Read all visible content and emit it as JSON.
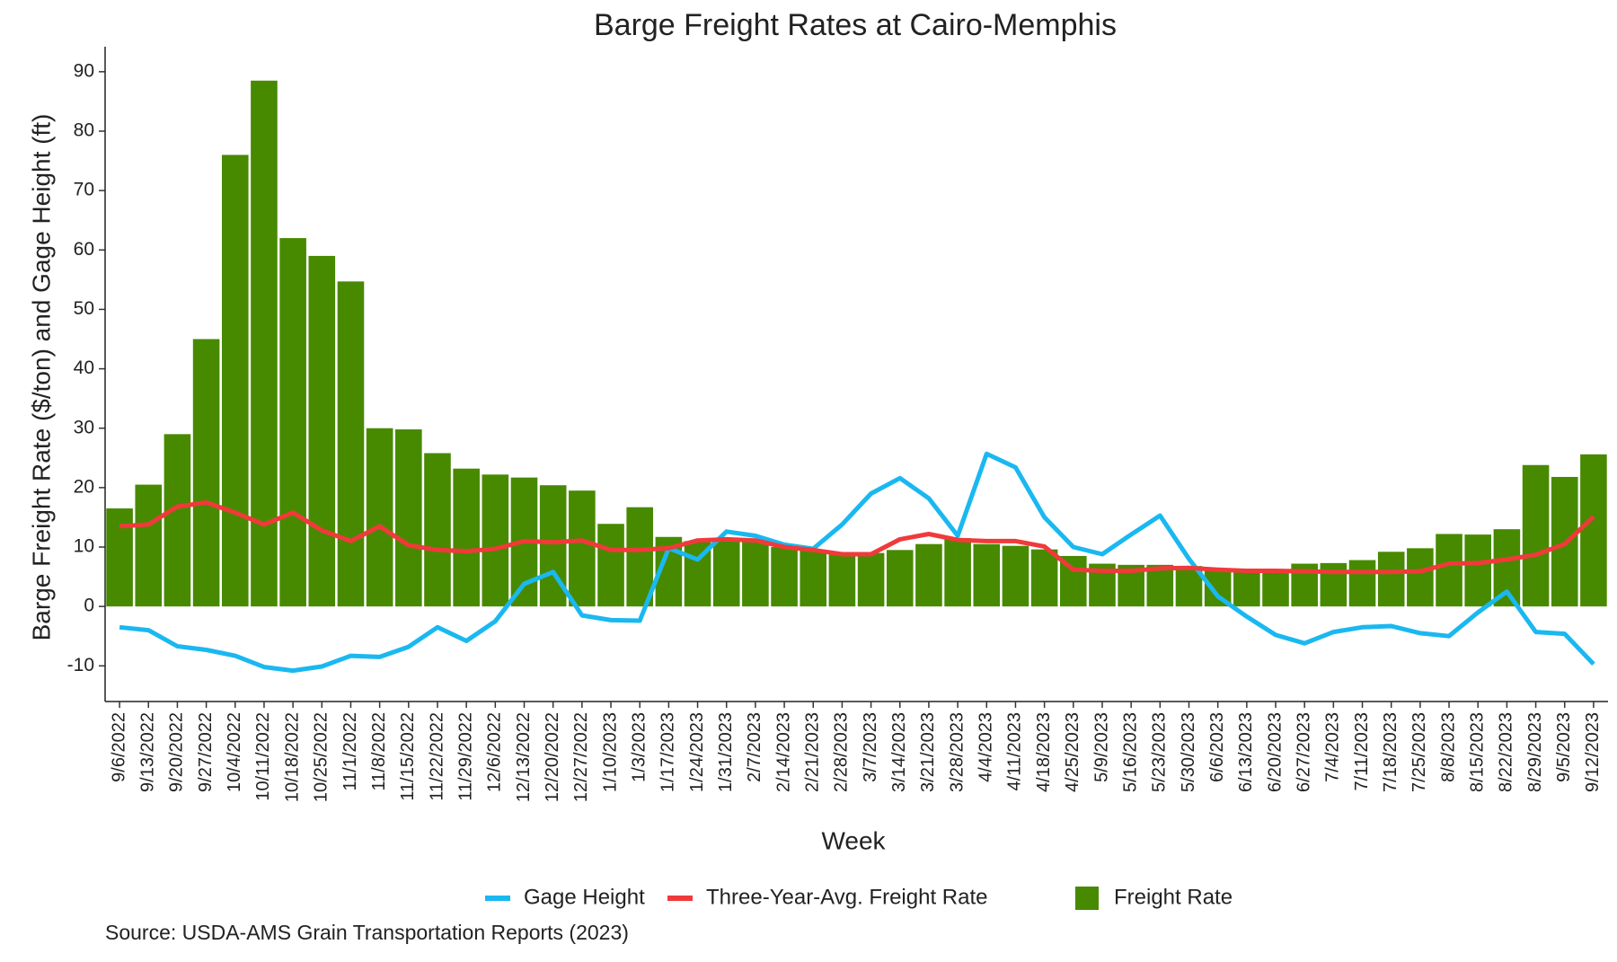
{
  "chart_data": {
    "type": "bar",
    "title": "Barge Freight Rates at Cairo-Memphis",
    "x_label": "Week",
    "y_label": "Barge Freight Rate ($/ton) and Gage Height (ft)",
    "source": "Source: USDA-AMS Grain Transportation Reports (2023)",
    "categories": [
      "9/6/2022",
      "9/13/2022",
      "9/20/2022",
      "9/27/2022",
      "10/4/2022",
      "10/11/2022",
      "10/18/2022",
      "10/25/2022",
      "11/1/2022",
      "11/8/2022",
      "11/15/2022",
      "11/22/2022",
      "11/29/2022",
      "12/6/2022",
      "12/13/2022",
      "12/20/2022",
      "12/27/2022",
      "1/10/2023",
      "1/3/2023",
      "1/17/2023",
      "1/24/2023",
      "1/31/2023",
      "2/7/2023",
      "2/14/2023",
      "2/21/2023",
      "2/28/2023",
      "3/7/2023",
      "3/14/2023",
      "3/21/2023",
      "3/28/2023",
      "4/4/2023",
      "4/11/2023",
      "4/18/2023",
      "4/25/2023",
      "5/9/2023",
      "5/16/2023",
      "5/23/2023",
      "5/30/2023",
      "6/6/2023",
      "6/13/2023",
      "6/20/2023",
      "6/27/2023",
      "7/4/2023",
      "7/11/2023",
      "7/18/2023",
      "7/25/2023",
      "8/8/2023",
      "8/15/2023",
      "8/22/2023",
      "8/29/2023",
      "9/5/2023",
      "9/12/2023"
    ],
    "series": [
      {
        "name": "Gage Height",
        "type": "line",
        "color": "#1ab8f0",
        "values": [
          -3.5,
          -4,
          -6.7,
          -7.3,
          -8.3,
          -10.2,
          -10.8,
          -10.1,
          -8.3,
          -8.5,
          -6.8,
          -3.5,
          -5.8,
          -2.5,
          3.8,
          5.8,
          -1.5,
          -2.3,
          -2.4,
          9.8,
          7.9,
          12.6,
          11.9,
          10.4,
          9.7,
          13.8,
          19,
          21.6,
          18.2,
          11.9,
          25.7,
          23.4,
          15,
          10,
          8.8,
          12.1,
          15.3,
          8,
          1.7,
          -1.7,
          -4.8,
          -6.2,
          -4.3,
          -3.5,
          -3.3,
          -4.5,
          -5,
          -1,
          2.5,
          -4.3,
          -4.6,
          -9.7
        ]
      },
      {
        "name": "Three-Year-Avg. Freight Rate",
        "type": "line",
        "color": "#f03a3a",
        "values": [
          13.5,
          13.8,
          16.8,
          17.5,
          15.8,
          13.8,
          15.8,
          12.8,
          11,
          13.5,
          10.3,
          9.5,
          9.3,
          9.7,
          11,
          10.8,
          11.1,
          9.5,
          9.5,
          9.8,
          11.1,
          11.3,
          11.1,
          10,
          9.5,
          8.8,
          8.8,
          11.3,
          12.2,
          11.2,
          11,
          11,
          10.1,
          6.2,
          6,
          6,
          6.4,
          6.5,
          6.2,
          6,
          6,
          5.9,
          5.8,
          5.8,
          5.8,
          5.9,
          7.2,
          7.3,
          7.9,
          8.7,
          10.5,
          15.1
        ]
      },
      {
        "name": "Freight Rate",
        "type": "bar",
        "color": "#478a00",
        "values": [
          16.5,
          20.5,
          29,
          45,
          76,
          88.5,
          62,
          59,
          54.7,
          30,
          29.8,
          25.8,
          23.2,
          22.2,
          21.7,
          20.4,
          19.5,
          13.9,
          16.7,
          11.7,
          11,
          11.5,
          11,
          10,
          9.5,
          9,
          9,
          9.5,
          10.5,
          11.5,
          10.5,
          10.2,
          9.6,
          8.5,
          7.2,
          7,
          7,
          6.8,
          6.3,
          6,
          6,
          7.2,
          7.3,
          7.8,
          9.2,
          9.8,
          12.2,
          12.1,
          13,
          23.8,
          21.8,
          25.6
        ]
      }
    ],
    "ylim": [
      -16,
      93
    ],
    "yticks": [
      -10,
      0,
      10,
      20,
      30,
      40,
      50,
      60,
      70,
      80,
      90
    ],
    "grid": false
  }
}
